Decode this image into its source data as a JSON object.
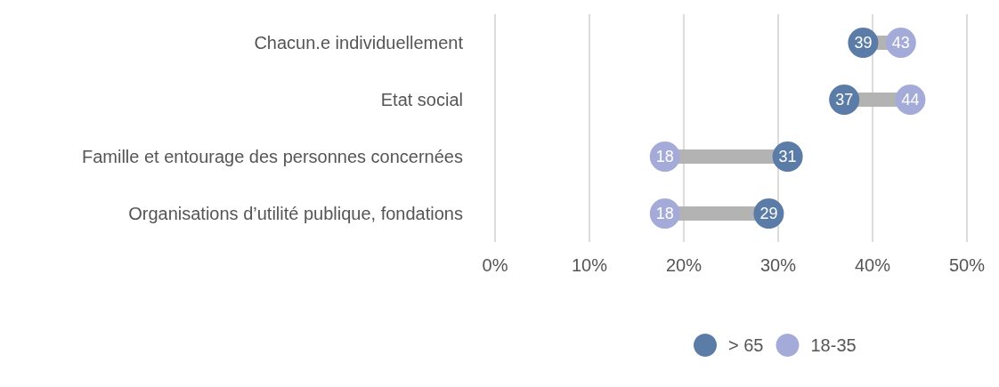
{
  "chart_data": {
    "type": "scatter",
    "orientation": "horizontal",
    "categories": [
      "Chacun.e individuellement",
      "Etat social",
      "Famille et entourage des personnes concernées",
      "Organisations d’utilité publique, fondations"
    ],
    "series": [
      {
        "name": "> 65",
        "color": "#5a7ca6",
        "values": [
          39,
          37,
          31,
          29
        ]
      },
      {
        "name": "18-35",
        "color": "#a5abd8",
        "values": [
          43,
          44,
          18,
          18
        ]
      }
    ],
    "xlim": [
      0,
      50
    ],
    "xticks": [
      {
        "value": 0,
        "label": "0%"
      },
      {
        "value": 10,
        "label": "10%"
      },
      {
        "value": 20,
        "label": "20%"
      },
      {
        "value": 30,
        "label": "30%"
      },
      {
        "value": 40,
        "label": "40%"
      },
      {
        "value": 50,
        "label": "50%"
      }
    ],
    "grid": "x",
    "legend": "bottom",
    "marker": "circle",
    "data_labels": true
  }
}
